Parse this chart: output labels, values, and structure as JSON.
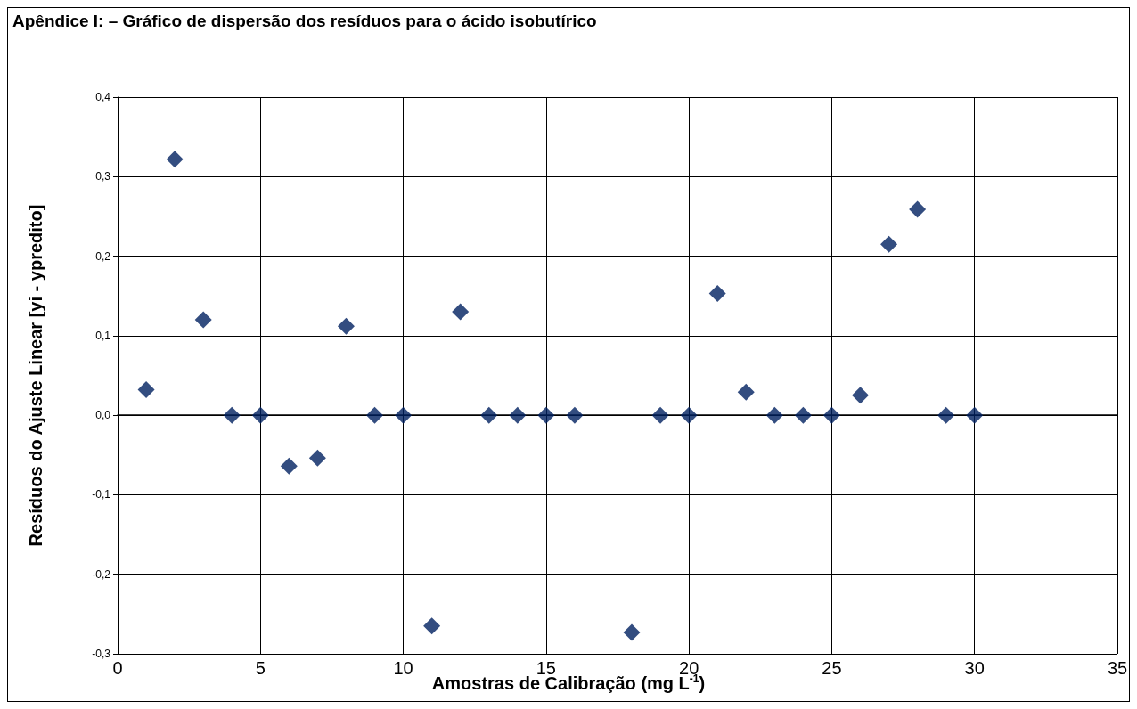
{
  "chart_data": {
    "type": "scatter",
    "title": "Apêndice I: – Gráfico de dispersão dos resíduos para o ácido isobutírico",
    "xlabel": "Amostras de Calibração (mg L$^{-1}$)",
    "ylabel": "Resíduos do Ajuste Linear [yi - ypredito]",
    "x": [
      1,
      2,
      3,
      4,
      5,
      6,
      7,
      8,
      9,
      10,
      11,
      12,
      13,
      14,
      15,
      16,
      18,
      19,
      20,
      21,
      22,
      23,
      24,
      25,
      26,
      27,
      28,
      29,
      30
    ],
    "series": [
      {
        "color": "#002060",
        "values": [
          0.032,
          0.322,
          0.12,
          0,
          0,
          -0.064,
          -0.054,
          0.112,
          0,
          0,
          -0.265,
          0.13,
          0,
          0,
          0,
          0,
          -0.273,
          0,
          0,
          0.153,
          0.029,
          0,
          0,
          0,
          0.025,
          0.215,
          0.259,
          0,
          0
        ]
      }
    ],
    "xlim": [
      0,
      35
    ],
    "xticks": [
      0,
      5,
      10,
      15,
      20,
      25,
      30,
      35
    ],
    "ylim": [
      -0.3,
      0.4
    ],
    "yticks": [
      {
        "value": -0.3,
        "label": "-0,3"
      },
      {
        "value": -0.2,
        "label": "-0,2"
      },
      {
        "value": -0.1,
        "label": "-0,1"
      },
      {
        "value": 0,
        "label": "0,0"
      },
      {
        "value": 0.1,
        "label": "0,1"
      },
      {
        "value": 0.2,
        "label": "0,2"
      },
      {
        "value": 0.3,
        "label": "0,3"
      },
      {
        "value": 0.4,
        "label": "0,4"
      }
    ],
    "grid": true,
    "marker": "diamond"
  }
}
